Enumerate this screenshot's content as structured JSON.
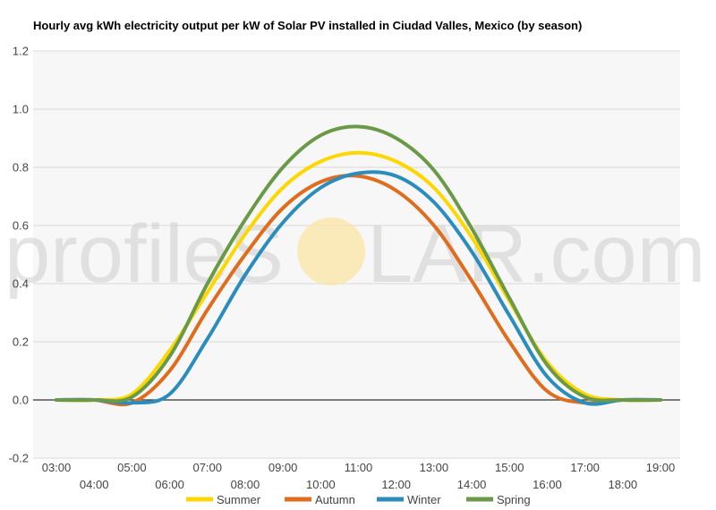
{
  "chart_data": {
    "type": "line",
    "title": "Hourly avg kWh electricity output per kW of Solar PV installed in Ciudad Valles, Mexico (by season)",
    "xlabel": "",
    "ylabel": "",
    "ylim": [
      -0.2,
      1.2
    ],
    "yticks": [
      "-0.2",
      "0.0",
      "0.2",
      "0.4",
      "0.6",
      "0.8",
      "1.0",
      "1.2"
    ],
    "x": [
      "03:00",
      "04:00",
      "05:00",
      "06:00",
      "07:00",
      "08:00",
      "09:00",
      "10:00",
      "11:00",
      "12:00",
      "13:00",
      "14:00",
      "15:00",
      "16:00",
      "17:00",
      "18:00",
      "19:00"
    ],
    "grid": true,
    "legend_position": "bottom",
    "series": [
      {
        "name": "Summer",
        "color": "#FFD700",
        "values": [
          0,
          0,
          0.02,
          0.17,
          0.37,
          0.57,
          0.73,
          0.82,
          0.85,
          0.82,
          0.73,
          0.56,
          0.34,
          0.13,
          0.02,
          0,
          0
        ]
      },
      {
        "name": "Autumn",
        "color": "#E06C1E",
        "values": [
          0,
          0,
          -0.01,
          0.1,
          0.31,
          0.5,
          0.66,
          0.75,
          0.77,
          0.72,
          0.6,
          0.41,
          0.2,
          0.03,
          -0.01,
          0,
          0
        ]
      },
      {
        "name": "Winter",
        "color": "#2B8CBE",
        "values": [
          0,
          0,
          -0.01,
          0.02,
          0.21,
          0.43,
          0.61,
          0.73,
          0.78,
          0.77,
          0.68,
          0.51,
          0.29,
          0.08,
          -0.01,
          0,
          0
        ]
      },
      {
        "name": "Spring",
        "color": "#6A9A48",
        "values": [
          0,
          0,
          0.01,
          0.15,
          0.4,
          0.62,
          0.8,
          0.91,
          0.94,
          0.9,
          0.79,
          0.59,
          0.35,
          0.12,
          0.01,
          0,
          0
        ]
      }
    ]
  },
  "watermark": {
    "text_left": "profileS",
    "text_right": "LAR.com",
    "sun_color": "#FBE5A6"
  }
}
